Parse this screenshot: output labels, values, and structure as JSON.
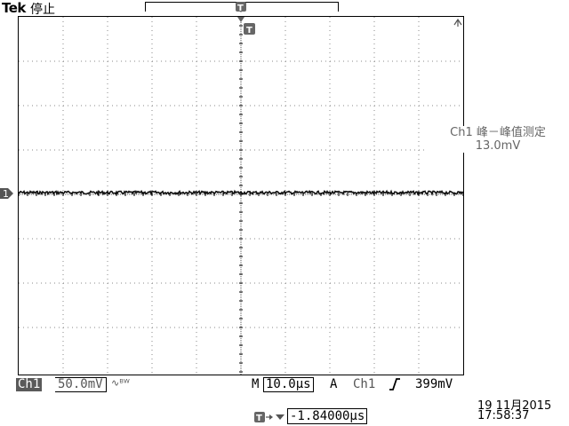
{
  "header": {
    "brand": "Tek",
    "acquisition_state": "停止"
  },
  "measurement": {
    "label": "Ch1 峰－峰值测定",
    "value": "13.0mV"
  },
  "status_bar": {
    "channel_label": "Ch1",
    "channel_scale": "50.0mV",
    "timebase_letter": "M",
    "timebase": "10.0µs",
    "trigger_letter": "A",
    "trigger_source": "Ch1",
    "trigger_level": "399mV",
    "trigger_position": "-1.84000µs",
    "date": "19 11月2015",
    "time": "17:58:37"
  },
  "markers": {
    "channel_marker": "1",
    "trigger_marker": "T"
  },
  "icons": {
    "bandwidth": "bandwidth-limit-icon",
    "trigger_slope": "rising-edge-icon",
    "trigger_position": "trigger-position-icon"
  }
}
